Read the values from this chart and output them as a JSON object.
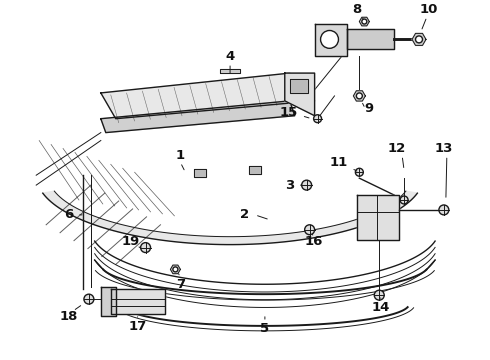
{
  "bg_color": "#ffffff",
  "fig_width": 4.9,
  "fig_height": 3.6,
  "dpi": 100,
  "line_color": "#1a1a1a",
  "label_color": "#111111",
  "label_fontsize": 9.5,
  "label_fontsize_sm": 8.0
}
